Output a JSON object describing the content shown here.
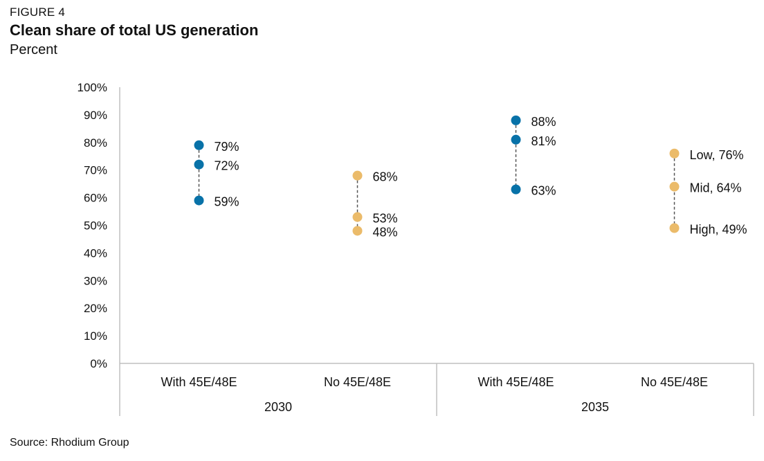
{
  "figure_label": "FIGURE 4",
  "title": "Clean share of total US generation",
  "subtitle": "Percent",
  "source": "Source: Rhodium Group",
  "colors": {
    "with_credit": "#0872a8",
    "no_credit": "#ebbb6a",
    "axis": "#bfbfbf",
    "connector": "#555555"
  },
  "chart_data": {
    "type": "scatter",
    "y_ticks": [
      "0%",
      "10%",
      "20%",
      "30%",
      "40%",
      "50%",
      "60%",
      "70%",
      "80%",
      "90%",
      "100%"
    ],
    "ylim": [
      0,
      100
    ],
    "groups": [
      {
        "year": "2030",
        "categories": [
          {
            "label": "With 45E/48E",
            "color": "with_credit",
            "points": [
              {
                "value": 79,
                "label": "79%"
              },
              {
                "value": 72,
                "label": "72%"
              },
              {
                "value": 59,
                "label": "59%"
              }
            ]
          },
          {
            "label": "No 45E/48E",
            "color": "no_credit",
            "points": [
              {
                "value": 68,
                "label": "68%"
              },
              {
                "value": 53,
                "label": "53%"
              },
              {
                "value": 48,
                "label": "48%"
              }
            ]
          }
        ]
      },
      {
        "year": "2035",
        "categories": [
          {
            "label": "With 45E/48E",
            "color": "with_credit",
            "points": [
              {
                "value": 88,
                "label": "88%"
              },
              {
                "value": 81,
                "label": "81%"
              },
              {
                "value": 63,
                "label": "63%"
              }
            ]
          },
          {
            "label": "No 45E/48E",
            "color": "no_credit",
            "points": [
              {
                "value": 76,
                "label": "Low, 76%"
              },
              {
                "value": 64,
                "label": "Mid, 64%"
              },
              {
                "value": 49,
                "label": "High, 49%"
              }
            ]
          }
        ]
      }
    ]
  }
}
